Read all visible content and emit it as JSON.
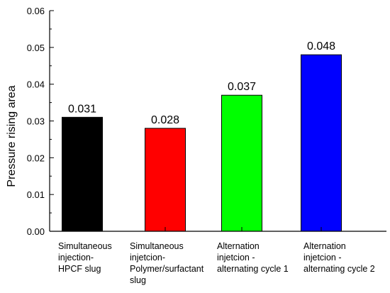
{
  "chart_data": {
    "type": "bar",
    "title": "",
    "xlabel": "",
    "ylabel": "Pressure rising area",
    "ylim": [
      0,
      0.06
    ],
    "yticks": [
      "0.00",
      "0.01",
      "0.02",
      "0.03",
      "0.04",
      "0.05",
      "0.06"
    ],
    "grid": false,
    "categories": [
      [
        "Simultaneous",
        "injection-",
        "HPCF slug"
      ],
      [
        "Simultaneous",
        "injetcion-",
        "Polymer/surfactant",
        "slug"
      ],
      [
        "Alternation",
        "injetcion -",
        "alternating cycle 1"
      ],
      [
        "Alternation",
        "injetcion -",
        "alternating cycle 2"
      ]
    ],
    "values": [
      0.031,
      0.028,
      0.037,
      0.048
    ],
    "value_labels": [
      "0.031",
      "0.028",
      "0.037",
      "0.048"
    ],
    "colors": [
      "#000000",
      "#ff0000",
      "#00ff00",
      "#0000ff"
    ]
  }
}
